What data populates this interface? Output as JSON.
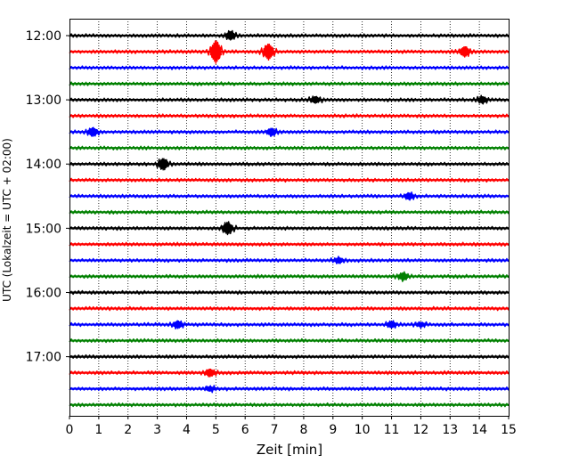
{
  "chart_data": {
    "type": "line",
    "chart_kind": "helicorder",
    "xlabel": "Zeit  [min]",
    "ylabel": "UTC (Lokalzeit = UTC + 02:00)",
    "xlim": [
      0,
      15
    ],
    "x_ticks": [
      "0",
      "1",
      "2",
      "3",
      "4",
      "5",
      "6",
      "7",
      "8",
      "9",
      "10",
      "11",
      "12",
      "13",
      "14",
      "15"
    ],
    "y_ticks": [
      "12:00",
      "13:00",
      "14:00",
      "15:00",
      "16:00",
      "17:00"
    ],
    "grid": "vertical dotted",
    "trace_interval_minutes": 15,
    "start_time": "12:00",
    "colors_cycle": [
      "#000000",
      "#ff0000",
      "#0000ff",
      "#008000"
    ],
    "traces": [
      {
        "start": "12:00",
        "color": "#000000",
        "events": [
          {
            "x": 5.5,
            "amp": 1.0
          }
        ]
      },
      {
        "start": "12:15",
        "color": "#ff0000",
        "events": [
          {
            "x": 5.0,
            "amp": 2.5
          },
          {
            "x": 6.8,
            "amp": 1.8
          },
          {
            "x": 13.5,
            "amp": 1.2
          }
        ]
      },
      {
        "start": "12:30",
        "color": "#0000ff",
        "events": []
      },
      {
        "start": "12:45",
        "color": "#008000",
        "events": []
      },
      {
        "start": "13:00",
        "color": "#000000",
        "events": [
          {
            "x": 8.4,
            "amp": 0.8
          },
          {
            "x": 14.1,
            "amp": 0.8
          }
        ]
      },
      {
        "start": "13:15",
        "color": "#ff0000",
        "events": []
      },
      {
        "start": "13:30",
        "color": "#0000ff",
        "events": [
          {
            "x": 0.8,
            "amp": 1.0
          },
          {
            "x": 6.9,
            "amp": 0.9
          }
        ]
      },
      {
        "start": "13:45",
        "color": "#008000",
        "events": []
      },
      {
        "start": "14:00",
        "color": "#000000",
        "events": [
          {
            "x": 3.2,
            "amp": 1.3
          }
        ]
      },
      {
        "start": "14:15",
        "color": "#ff0000",
        "events": []
      },
      {
        "start": "14:30",
        "color": "#0000ff",
        "events": [
          {
            "x": 11.6,
            "amp": 0.8
          }
        ]
      },
      {
        "start": "14:45",
        "color": "#008000",
        "events": []
      },
      {
        "start": "15:00",
        "color": "#000000",
        "events": [
          {
            "x": 5.4,
            "amp": 1.4
          }
        ]
      },
      {
        "start": "15:15",
        "color": "#ff0000",
        "events": []
      },
      {
        "start": "15:30",
        "color": "#0000ff",
        "events": [
          {
            "x": 9.2,
            "amp": 0.7
          }
        ]
      },
      {
        "start": "15:45",
        "color": "#008000",
        "events": [
          {
            "x": 11.4,
            "amp": 0.9
          }
        ]
      },
      {
        "start": "16:00",
        "color": "#000000",
        "events": []
      },
      {
        "start": "16:15",
        "color": "#ff0000",
        "events": []
      },
      {
        "start": "16:30",
        "color": "#0000ff",
        "events": [
          {
            "x": 3.7,
            "amp": 0.9
          },
          {
            "x": 11.0,
            "amp": 0.8
          },
          {
            "x": 12.0,
            "amp": 0.6
          }
        ]
      },
      {
        "start": "16:45",
        "color": "#008000",
        "events": []
      },
      {
        "start": "17:00",
        "color": "#000000",
        "events": []
      },
      {
        "start": "17:15",
        "color": "#ff0000",
        "events": [
          {
            "x": 4.8,
            "amp": 0.9
          }
        ]
      },
      {
        "start": "17:30",
        "color": "#0000ff",
        "events": [
          {
            "x": 4.8,
            "amp": 0.6
          }
        ]
      },
      {
        "start": "17:45",
        "color": "#008000",
        "events": []
      }
    ]
  }
}
